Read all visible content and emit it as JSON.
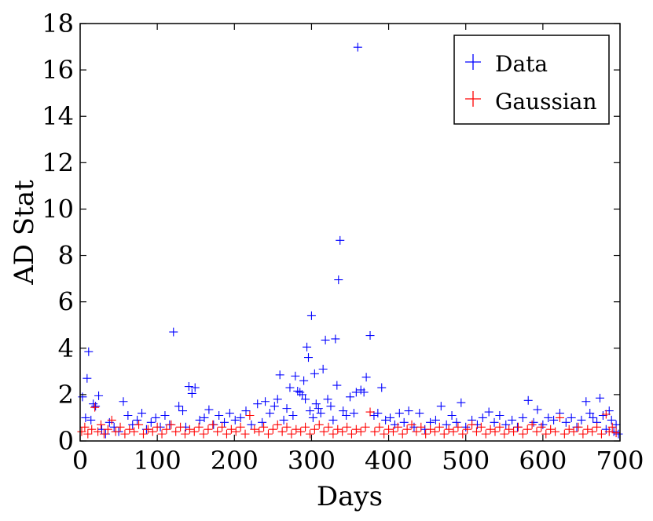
{
  "chart_data": {
    "type": "scatter",
    "title": "",
    "xlabel": "Days",
    "ylabel": "AD Stat",
    "xlim": [
      0,
      700
    ],
    "ylim": [
      0,
      18
    ],
    "xticks": [
      0,
      100,
      200,
      300,
      400,
      500,
      600,
      700
    ],
    "yticks": [
      0,
      2,
      4,
      6,
      8,
      10,
      12,
      14,
      16,
      18
    ],
    "grid": false,
    "legend_position": "top-right",
    "marker": "+",
    "series": [
      {
        "name": "Data",
        "color": "#0000ff",
        "points": [
          [
            3,
            1.9
          ],
          [
            7,
            1.0
          ],
          [
            9,
            2.7
          ],
          [
            11,
            3.85
          ],
          [
            14,
            0.9
          ],
          [
            17,
            1.6
          ],
          [
            20,
            1.5
          ],
          [
            24,
            1.95
          ],
          [
            28,
            0.5
          ],
          [
            33,
            0.3
          ],
          [
            38,
            0.8
          ],
          [
            44,
            0.6
          ],
          [
            50,
            0.4
          ],
          [
            56,
            1.7
          ],
          [
            62,
            1.1
          ],
          [
            68,
            0.7
          ],
          [
            74,
            0.9
          ],
          [
            80,
            1.2
          ],
          [
            86,
            0.5
          ],
          [
            92,
            0.8
          ],
          [
            98,
            1.0
          ],
          [
            104,
            0.6
          ],
          [
            110,
            1.1
          ],
          [
            116,
            0.7
          ],
          [
            121,
            4.7
          ],
          [
            128,
            1.5
          ],
          [
            133,
            1.3
          ],
          [
            137,
            0.6
          ],
          [
            141,
            2.35
          ],
          [
            145,
            2.05
          ],
          [
            149,
            2.3
          ],
          [
            155,
            0.9
          ],
          [
            161,
            1.0
          ],
          [
            167,
            1.35
          ],
          [
            173,
            0.7
          ],
          [
            180,
            1.1
          ],
          [
            187,
            0.8
          ],
          [
            194,
            1.2
          ],
          [
            201,
            0.9
          ],
          [
            208,
            1.0
          ],
          [
            215,
            1.3
          ],
          [
            222,
            0.7
          ],
          [
            230,
            1.6
          ],
          [
            236,
            0.8
          ],
          [
            240,
            1.7
          ],
          [
            246,
            1.2
          ],
          [
            252,
            1.5
          ],
          [
            256,
            1.8
          ],
          [
            259,
            2.85
          ],
          [
            264,
            0.9
          ],
          [
            268,
            1.4
          ],
          [
            272,
            2.3
          ],
          [
            276,
            1.1
          ],
          [
            279,
            2.8
          ],
          [
            282,
            2.15
          ],
          [
            285,
            2.1
          ],
          [
            288,
            2.0
          ],
          [
            290,
            2.6
          ],
          [
            292,
            1.8
          ],
          [
            294,
            4.05
          ],
          [
            296,
            3.6
          ],
          [
            298,
            1.3
          ],
          [
            300,
            5.4
          ],
          [
            302,
            1.0
          ],
          [
            304,
            2.9
          ],
          [
            306,
            1.6
          ],
          [
            309,
            1.4
          ],
          [
            312,
            1.2
          ],
          [
            315,
            3.1
          ],
          [
            318,
            4.35
          ],
          [
            321,
            1.8
          ],
          [
            325,
            1.5
          ],
          [
            328,
            0.9
          ],
          [
            331,
            4.4
          ],
          [
            333,
            2.4
          ],
          [
            335,
            6.95
          ],
          [
            337,
            8.65
          ],
          [
            341,
            1.3
          ],
          [
            345,
            1.1
          ],
          [
            350,
            1.9
          ],
          [
            355,
            1.2
          ],
          [
            358,
            2.1
          ],
          [
            360,
            16.98
          ],
          [
            364,
            2.2
          ],
          [
            368,
            2.1
          ],
          [
            371,
            2.75
          ],
          [
            376,
            4.55
          ],
          [
            381,
            1.1
          ],
          [
            386,
            1.2
          ],
          [
            391,
            2.3
          ],
          [
            396,
            0.9
          ],
          [
            402,
            1.0
          ],
          [
            408,
            0.7
          ],
          [
            414,
            1.2
          ],
          [
            420,
            0.8
          ],
          [
            426,
            1.3
          ],
          [
            433,
            0.6
          ],
          [
            440,
            1.2
          ],
          [
            447,
            0.5
          ],
          [
            454,
            0.8
          ],
          [
            461,
            0.9
          ],
          [
            468,
            1.5
          ],
          [
            475,
            0.7
          ],
          [
            482,
            1.1
          ],
          [
            488,
            0.8
          ],
          [
            494,
            1.65
          ],
          [
            500,
            0.6
          ],
          [
            508,
            0.9
          ],
          [
            515,
            0.7
          ],
          [
            522,
            1.0
          ],
          [
            530,
            1.25
          ],
          [
            537,
            0.8
          ],
          [
            544,
            1.1
          ],
          [
            552,
            0.7
          ],
          [
            560,
            0.9
          ],
          [
            567,
            0.6
          ],
          [
            574,
            1.0
          ],
          [
            581,
            1.75
          ],
          [
            588,
            0.8
          ],
          [
            593,
            1.35
          ],
          [
            600,
            0.7
          ],
          [
            607,
            1.0
          ],
          [
            614,
            0.9
          ],
          [
            622,
            1.2
          ],
          [
            630,
            0.8
          ],
          [
            637,
            1.0
          ],
          [
            644,
            0.6
          ],
          [
            650,
            0.9
          ],
          [
            656,
            1.7
          ],
          [
            661,
            1.2
          ],
          [
            665,
            1.0
          ],
          [
            670,
            0.8
          ],
          [
            674,
            1.85
          ],
          [
            678,
            1.1
          ],
          [
            682,
            0.5
          ],
          [
            686,
            1.3
          ],
          [
            689,
            0.9
          ],
          [
            692,
            0.4
          ],
          [
            695,
            0.7
          ],
          [
            698,
            0.3
          ]
        ]
      },
      {
        "name": "Gaussian",
        "color": "#ff0000",
        "points": [
          [
            2,
            0.4
          ],
          [
            6,
            0.6
          ],
          [
            10,
            0.3
          ],
          [
            15,
            0.5
          ],
          [
            19,
            1.45
          ],
          [
            23,
            0.4
          ],
          [
            27,
            0.7
          ],
          [
            31,
            0.3
          ],
          [
            36,
            0.5
          ],
          [
            41,
            0.9
          ],
          [
            46,
            0.4
          ],
          [
            52,
            0.6
          ],
          [
            58,
            0.3
          ],
          [
            64,
            0.5
          ],
          [
            70,
            0.4
          ],
          [
            76,
            0.7
          ],
          [
            82,
            0.3
          ],
          [
            88,
            0.5
          ],
          [
            94,
            0.4
          ],
          [
            100,
            0.6
          ],
          [
            106,
            0.3
          ],
          [
            112,
            0.5
          ],
          [
            118,
            0.7
          ],
          [
            124,
            0.4
          ],
          [
            130,
            0.6
          ],
          [
            136,
            0.3
          ],
          [
            142,
            0.5
          ],
          [
            148,
            0.4
          ],
          [
            154,
            0.6
          ],
          [
            160,
            0.3
          ],
          [
            166,
            0.5
          ],
          [
            172,
            0.7
          ],
          [
            178,
            0.4
          ],
          [
            184,
            0.6
          ],
          [
            190,
            0.3
          ],
          [
            196,
            0.5
          ],
          [
            202,
            0.4
          ],
          [
            208,
            0.6
          ],
          [
            214,
            0.3
          ],
          [
            220,
            1.1
          ],
          [
            226,
            0.5
          ],
          [
            232,
            0.4
          ],
          [
            238,
            0.6
          ],
          [
            244,
            0.3
          ],
          [
            250,
            0.5
          ],
          [
            256,
            0.7
          ],
          [
            262,
            0.4
          ],
          [
            268,
            0.6
          ],
          [
            274,
            0.3
          ],
          [
            280,
            0.5
          ],
          [
            286,
            0.4
          ],
          [
            292,
            0.6
          ],
          [
            298,
            0.3
          ],
          [
            304,
            0.5
          ],
          [
            310,
            0.7
          ],
          [
            316,
            0.4
          ],
          [
            322,
            0.6
          ],
          [
            328,
            0.3
          ],
          [
            334,
            0.5
          ],
          [
            340,
            0.4
          ],
          [
            346,
            0.6
          ],
          [
            352,
            0.3
          ],
          [
            358,
            0.5
          ],
          [
            364,
            0.4
          ],
          [
            370,
            0.6
          ],
          [
            376,
            1.25
          ],
          [
            382,
            0.4
          ],
          [
            388,
            0.6
          ],
          [
            394,
            0.3
          ],
          [
            400,
            0.5
          ],
          [
            406,
            0.4
          ],
          [
            412,
            0.6
          ],
          [
            418,
            0.3
          ],
          [
            424,
            0.5
          ],
          [
            430,
            0.7
          ],
          [
            436,
            0.4
          ],
          [
            442,
            0.6
          ],
          [
            448,
            0.3
          ],
          [
            454,
            0.5
          ],
          [
            460,
            0.4
          ],
          [
            466,
            0.6
          ],
          [
            472,
            0.3
          ],
          [
            478,
            0.5
          ],
          [
            484,
            0.4
          ],
          [
            490,
            0.6
          ],
          [
            496,
            0.3
          ],
          [
            502,
            0.5
          ],
          [
            508,
            0.7
          ],
          [
            514,
            0.4
          ],
          [
            520,
            0.6
          ],
          [
            526,
            0.3
          ],
          [
            532,
            0.5
          ],
          [
            538,
            0.4
          ],
          [
            544,
            0.6
          ],
          [
            550,
            0.3
          ],
          [
            556,
            0.5
          ],
          [
            562,
            0.4
          ],
          [
            568,
            0.6
          ],
          [
            574,
            0.3
          ],
          [
            580,
            0.5
          ],
          [
            586,
            0.7
          ],
          [
            592,
            0.4
          ],
          [
            598,
            0.6
          ],
          [
            604,
            0.3
          ],
          [
            610,
            0.5
          ],
          [
            616,
            0.4
          ],
          [
            622,
            1.0
          ],
          [
            628,
            0.3
          ],
          [
            634,
            0.5
          ],
          [
            640,
            0.4
          ],
          [
            646,
            0.6
          ],
          [
            652,
            0.3
          ],
          [
            658,
            0.5
          ],
          [
            664,
            0.4
          ],
          [
            670,
            0.6
          ],
          [
            676,
            0.3
          ],
          [
            682,
            1.15
          ],
          [
            686,
            0.4
          ],
          [
            690,
            0.6
          ],
          [
            695,
            0.35
          ]
        ]
      }
    ]
  }
}
